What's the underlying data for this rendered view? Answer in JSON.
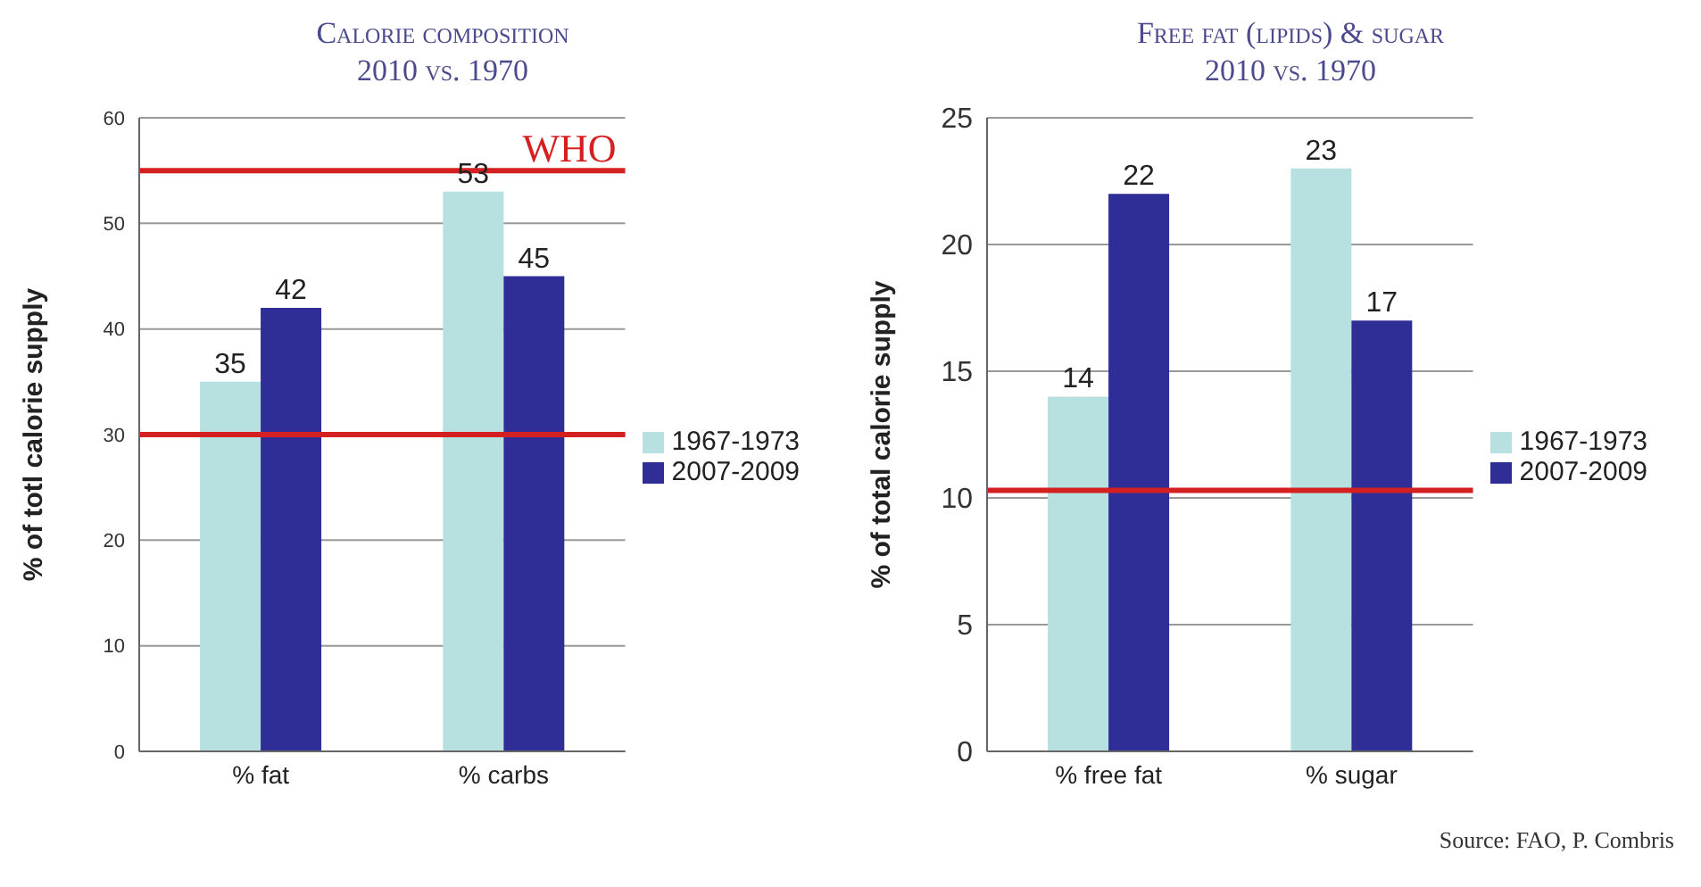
{
  "chart_data": [
    {
      "type": "bar",
      "title": "Calorie composition",
      "subtitle": "2010 vs. 1970",
      "ylabel": "% of totl calorie supply",
      "categories": [
        "% fat",
        "% carbs"
      ],
      "series": [
        {
          "name": "1967-1973",
          "color": "#b7e0e0",
          "values": [
            35,
            53
          ]
        },
        {
          "name": "2007-2009",
          "color": "#2e2e96",
          "values": [
            42,
            45
          ]
        }
      ],
      "ylim": [
        0,
        60
      ],
      "yticks": [
        0,
        10,
        20,
        30,
        40,
        50,
        60
      ],
      "grid": "y",
      "legend": "right",
      "data_labels": true,
      "ref_lines": [
        {
          "axis": "y",
          "value": 30,
          "color": "#d42020"
        },
        {
          "axis": "y",
          "value": 55,
          "label": "WHO",
          "color": "#d42020"
        }
      ]
    },
    {
      "type": "bar",
      "title": "Free fat (lipids) & sugar",
      "subtitle": "2010 vs. 1970",
      "ylabel": "% of total calorie supply",
      "categories": [
        "% free fat",
        "% sugar"
      ],
      "series": [
        {
          "name": "1967-1973",
          "color": "#b7e0e0",
          "values": [
            14,
            23
          ]
        },
        {
          "name": "2007-2009",
          "color": "#2e2e96",
          "values": [
            22,
            17
          ]
        }
      ],
      "ylim": [
        0,
        25
      ],
      "yticks": [
        0,
        5,
        10,
        15,
        20,
        25
      ],
      "grid": "y",
      "legend": "right",
      "data_labels": true,
      "ref_lines": [
        {
          "axis": "y",
          "value": 10.3,
          "color": "#d42020"
        }
      ],
      "annotations": [
        "Source: FAO, P. Combris"
      ]
    }
  ]
}
